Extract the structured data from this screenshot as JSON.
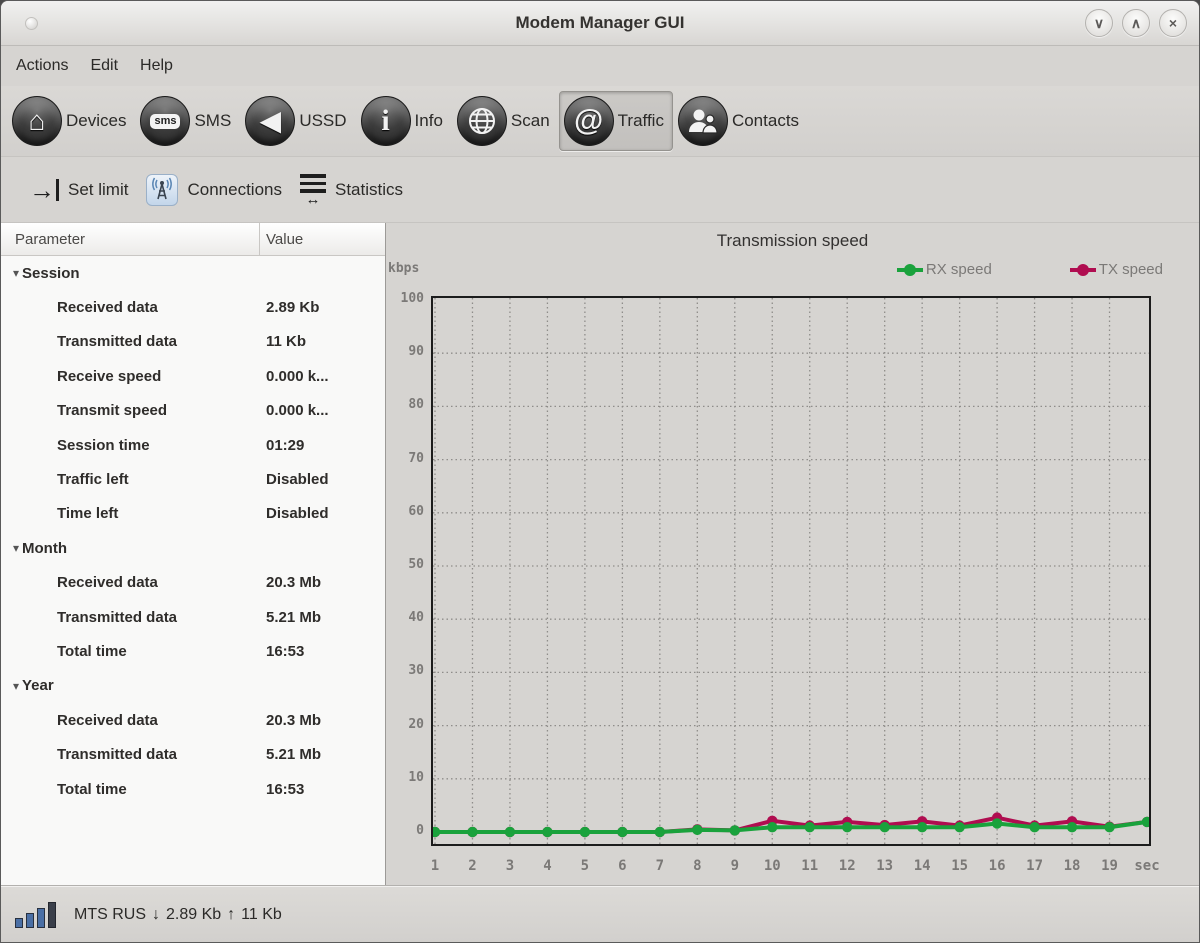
{
  "window": {
    "title": "Modem Manager GUI",
    "controls": [
      {
        "name": "minimize",
        "glyph": "∨"
      },
      {
        "name": "maximize",
        "glyph": "∧"
      },
      {
        "name": "close",
        "glyph": "×"
      }
    ]
  },
  "menu": {
    "items": [
      "Actions",
      "Edit",
      "Help"
    ]
  },
  "toolbar": {
    "items": [
      {
        "label": "Devices",
        "icon": "home-icon",
        "active": false
      },
      {
        "label": "SMS",
        "icon": "sms-icon",
        "active": false
      },
      {
        "label": "USSD",
        "icon": "speaker-icon",
        "active": false
      },
      {
        "label": "Info",
        "icon": "info-icon",
        "active": false
      },
      {
        "label": "Scan",
        "icon": "globe-icon",
        "active": false
      },
      {
        "label": "Traffic",
        "icon": "at-icon",
        "active": true
      },
      {
        "label": "Contacts",
        "icon": "people-icon",
        "active": false
      }
    ]
  },
  "subtoolbar": {
    "items": [
      {
        "label": "Set limit",
        "icon": "arrow-to-bar-icon"
      },
      {
        "label": "Connections",
        "icon": "antenna-icon"
      },
      {
        "label": "Statistics",
        "icon": "stats-lines-icon"
      }
    ]
  },
  "table": {
    "columns": [
      "Parameter",
      "Value"
    ],
    "groups": [
      {
        "label": "Session",
        "expanded": true,
        "rows": [
          [
            "Received data",
            "2.89 Kb"
          ],
          [
            "Transmitted data",
            "11 Kb"
          ],
          [
            "Receive speed",
            "0.000 k..."
          ],
          [
            "Transmit speed",
            "0.000 k..."
          ],
          [
            "Session time",
            "01:29"
          ],
          [
            "Traffic left",
            "Disabled"
          ],
          [
            "Time left",
            "Disabled"
          ]
        ]
      },
      {
        "label": "Month",
        "expanded": true,
        "rows": [
          [
            "Received data",
            "20.3 Mb"
          ],
          [
            "Transmitted data",
            "5.21 Mb"
          ],
          [
            "Total time",
            "16:53"
          ]
        ]
      },
      {
        "label": "Year",
        "expanded": true,
        "rows": [
          [
            "Received data",
            "20.3 Mb"
          ],
          [
            "Transmitted data",
            "5.21 Mb"
          ],
          [
            "Total time",
            "16:53"
          ]
        ]
      }
    ]
  },
  "chart_data": {
    "type": "line",
    "title": "Transmission speed",
    "y_axis_unit": "kbps",
    "ylim": [
      0,
      100
    ],
    "ytick_step": 10,
    "grid": "dotted",
    "legend_position": "top-right",
    "x": [
      1,
      2,
      3,
      4,
      5,
      6,
      7,
      8,
      9,
      10,
      11,
      12,
      13,
      14,
      15,
      16,
      17,
      18,
      19,
      20
    ],
    "xticklabels": [
      "1",
      "2",
      "3",
      "4",
      "5",
      "6",
      "7",
      "8",
      "9",
      "10",
      "11",
      "12",
      "13",
      "14",
      "15",
      "16",
      "17",
      "18",
      "19",
      "sec"
    ],
    "series": [
      {
        "name": "RX speed",
        "color": "#1aa23c",
        "values": [
          0,
          0,
          0,
          0,
          0,
          0,
          0,
          0.4,
          0.3,
          0.9,
          0.9,
          0.9,
          0.9,
          0.9,
          0.9,
          1.6,
          0.9,
          0.9,
          0.9,
          1.9
        ]
      },
      {
        "name": "TX speed",
        "color": "#b00d50",
        "values": [
          0,
          0,
          0,
          0,
          0,
          0,
          0,
          0.5,
          0.3,
          2.1,
          1.2,
          1.9,
          1.3,
          2.0,
          1.2,
          2.7,
          1.2,
          2.0,
          1.0,
          1.9
        ]
      }
    ]
  },
  "statusbar": {
    "operator": "MTS RUS",
    "down_arrow": "↓",
    "download": "2.89 Kb",
    "up_arrow": "↑",
    "upload": "11 Kb"
  },
  "icons": {
    "home_glyph": "⌂",
    "speaker_glyph": "◀",
    "info_glyph": "i",
    "at_glyph": "@",
    "sms_text": "sms",
    "setlimit_arrow": "→",
    "stats_arrow": "↔"
  }
}
